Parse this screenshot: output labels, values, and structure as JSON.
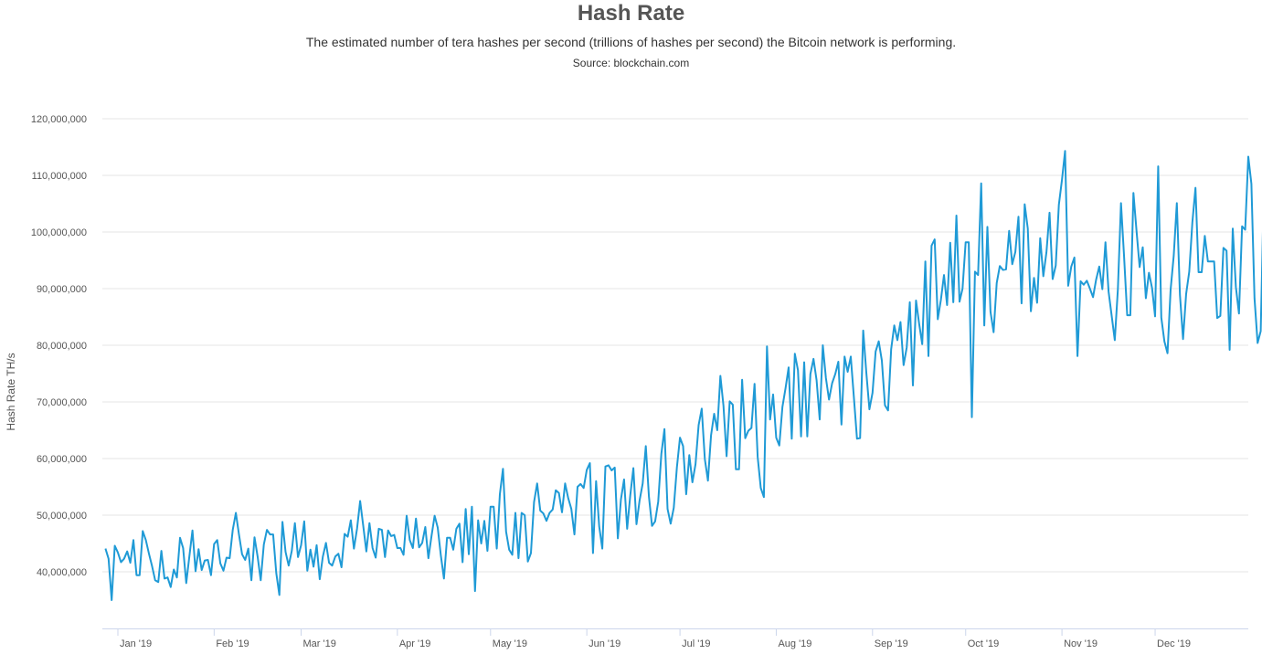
{
  "chart_data": {
    "type": "line",
    "title": "Hash Rate",
    "subtitle": "The estimated number of tera hashes per second (trillions of hashes per second) the Bitcoin network is performing.",
    "source": "Source: blockchain.com",
    "ylabel": "Hash Rate TH/s",
    "xlabel": "",
    "ylim": [
      30000000,
      120000000
    ],
    "yticks": [
      40000000,
      50000000,
      60000000,
      70000000,
      80000000,
      90000000,
      100000000,
      110000000,
      120000000
    ],
    "ytick_labels": [
      "40,000,000",
      "50,000,000",
      "60,000,000",
      "70,000,000",
      "80,000,000",
      "90,000,000",
      "100,000,000",
      "110,000,000",
      "120,000,000"
    ],
    "xlim": [
      "2018-12-27",
      "2019-12-31"
    ],
    "xticks": [
      "2019-01-01",
      "2019-02-01",
      "2019-03-01",
      "2019-04-01",
      "2019-05-01",
      "2019-06-01",
      "2019-07-01",
      "2019-08-01",
      "2019-09-01",
      "2019-10-01",
      "2019-11-01",
      "2019-12-01"
    ],
    "xtick_labels": [
      "Jan '19",
      "Feb '19",
      "Mar '19",
      "Apr '19",
      "May '19",
      "Jun '19",
      "Jul '19",
      "Aug '19",
      "Sep '19",
      "Oct '19",
      "Nov '19",
      "Dec '19"
    ],
    "grid": true,
    "legend": "none",
    "line_color": "#1f9ad6",
    "series": [
      {
        "x_start": "2018-12-28",
        "x_step_days": 1,
        "values": [
          44.1,
          42.3,
          35.0,
          44.6,
          43.4,
          41.7,
          42.3,
          43.6,
          41.6,
          45.6,
          39.4,
          39.4,
          47.2,
          45.6,
          43.2,
          41.0,
          38.5,
          38.2,
          43.7,
          38.8,
          39.0,
          37.3,
          40.4,
          39.0,
          46.0,
          44.2,
          38.0,
          42.7,
          47.3,
          40.1,
          44.0,
          40.3,
          42.0,
          42.1,
          39.4,
          44.9,
          45.6,
          41.5,
          40.2,
          42.5,
          42.4,
          47.4,
          50.4,
          46.6,
          43.1,
          42.1,
          44.1,
          38.5,
          46.1,
          42.7,
          38.5,
          44.8,
          47.4,
          46.6,
          46.6,
          39.8,
          35.9,
          48.8,
          43.5,
          41.1,
          43.7,
          48.6,
          42.6,
          44.7,
          48.9,
          40.2,
          43.9,
          40.9,
          44.7,
          38.7,
          42.7,
          45.1,
          41.6,
          41.1,
          42.7,
          43.2,
          40.8,
          46.7,
          46.2,
          49.1,
          44.1,
          47.6,
          52.5,
          48.1,
          43.6,
          48.6,
          44.2,
          42.5,
          47.6,
          47.4,
          42.6,
          47.3,
          46.3,
          46.5,
          44.2,
          44.2,
          43.0,
          49.9,
          45.6,
          44.2,
          49.4,
          44.3,
          45.1,
          47.9,
          42.4,
          46.3,
          49.9,
          47.8,
          42.9,
          38.8,
          46.0,
          46.0,
          43.9,
          47.6,
          48.5,
          41.7,
          51.1,
          43.1,
          51.5,
          36.6,
          49.1,
          45.0,
          49.0,
          43.7,
          51.5,
          51.5,
          44.1,
          53.7,
          58.2,
          47.1,
          43.9,
          43.0,
          50.4,
          42.4,
          50.4,
          50.0,
          41.8,
          43.3,
          52.3,
          55.6,
          50.8,
          50.3,
          49.0,
          50.4,
          51.0,
          54.4,
          53.9,
          50.5,
          55.6,
          53.0,
          51.1,
          46.6,
          55.0,
          55.5,
          54.8,
          58.0,
          59.2,
          43.3,
          56.0,
          48.0,
          44.1,
          58.6,
          58.8,
          57.9,
          58.4,
          45.9,
          52.8,
          56.3,
          47.6,
          53.5,
          58.3,
          48.4,
          52.6,
          55.6,
          62.2,
          53.3,
          48.1,
          48.9,
          52.4,
          60.8,
          65.2,
          51.1,
          48.5,
          51.3,
          58.4,
          63.7,
          62.2,
          53.7,
          60.6,
          55.8,
          59.0,
          65.9,
          68.8,
          59.9,
          56.1,
          64.1,
          67.9,
          65.0,
          74.6,
          69.3,
          60.4,
          70.1,
          69.5,
          58.1,
          58.1,
          73.9,
          63.6,
          64.9,
          65.4,
          73.2,
          60.3,
          54.8,
          53.2,
          79.8,
          66.9,
          71.3,
          63.7,
          62.3,
          69.1,
          72.4,
          76.1,
          63.5,
          78.5,
          75.6,
          63.9,
          77.0,
          63.9,
          74.9,
          77.6,
          73.8,
          66.9,
          80.0,
          74.2,
          70.4,
          73.3,
          74.9,
          77.1,
          66.0,
          78.0,
          75.3,
          78.0,
          70.8,
          63.5,
          63.6,
          82.6,
          75.2,
          68.7,
          71.6,
          78.9,
          80.7,
          77.3,
          69.4,
          68.5,
          79.3,
          83.5,
          80.9,
          84.1,
          76.5,
          79.6,
          87.6,
          72.9,
          87.9,
          83.8,
          80.2,
          94.8,
          78.1,
          97.6,
          98.7,
          84.6,
          88.0,
          92.4,
          87.1,
          98.1,
          87.6,
          102.9,
          87.7,
          90.0,
          98.2,
          98.2,
          67.3,
          93.0,
          92.4,
          108.6,
          83.5,
          100.9,
          85.9,
          82.3,
          91.0,
          94.0,
          93.3,
          93.4,
          100.2,
          94.3,
          96.5,
          102.7,
          87.4,
          104.9,
          100.6,
          86.0,
          91.9,
          87.5,
          98.9,
          92.2,
          96.4,
          103.4,
          91.7,
          94.1,
          104.8,
          109.2,
          114.3,
          90.5,
          93.9,
          95.5,
          78.1,
          91.3,
          90.7,
          91.4,
          90.0,
          88.5,
          91.6,
          93.9,
          89.9,
          98.2,
          89.5,
          85.2,
          80.9,
          89.9,
          105.1,
          95.6,
          85.3,
          85.3,
          106.9,
          100.2,
          93.8,
          97.3,
          88.3,
          92.8,
          90.1,
          85.1,
          111.6,
          84.9,
          80.7,
          78.6,
          89.8,
          95.8,
          105.1,
          88.9,
          81.1,
          89.1,
          93.0,
          101.7,
          107.8,
          92.9,
          92.9,
          99.3,
          94.8,
          94.8,
          94.8,
          84.8,
          85.2,
          97.2,
          96.7,
          79.2,
          100.6,
          90.3,
          85.6,
          101.0,
          100.4,
          113.3,
          108.5,
          88.3,
          80.4,
          82.5,
          107.5
        ]
      }
    ]
  }
}
